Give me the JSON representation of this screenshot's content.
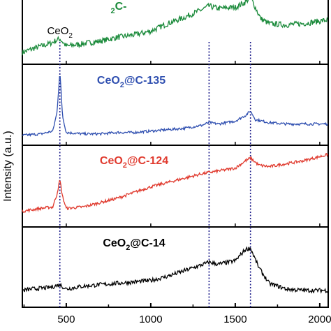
{
  "chart_data": {
    "type": "line",
    "ylabel": "Intensity (a.u.)",
    "xlim": [
      240,
      2050
    ],
    "x_ticks": [
      500,
      1000,
      1500,
      2000
    ],
    "x_tick_labels": [
      "500",
      "1000",
      "1500",
      "2000"
    ],
    "grid": false,
    "panels_stacked": true,
    "reference_lines_x": [
      462,
      1345,
      1590
    ],
    "peak_annotation": {
      "label": "CeO",
      "subscript": "2",
      "x": 462
    },
    "series": [
      {
        "name_parts": [
          "",
          "2",
          "C-"
        ],
        "color": "#1a8a3a",
        "points": [
          [
            240,
            0.12
          ],
          [
            300,
            0.18
          ],
          [
            400,
            0.26
          ],
          [
            462,
            0.34
          ],
          [
            500,
            0.22
          ],
          [
            600,
            0.26
          ],
          [
            700,
            0.3
          ],
          [
            800,
            0.36
          ],
          [
            900,
            0.4
          ],
          [
            1000,
            0.46
          ],
          [
            1100,
            0.58
          ],
          [
            1200,
            0.68
          ],
          [
            1300,
            0.8
          ],
          [
            1345,
            0.86
          ],
          [
            1400,
            0.82
          ],
          [
            1500,
            0.84
          ],
          [
            1560,
            0.92
          ],
          [
            1590,
            1.0
          ],
          [
            1650,
            0.66
          ],
          [
            1700,
            0.58
          ],
          [
            1800,
            0.56
          ],
          [
            1900,
            0.58
          ],
          [
            2000,
            0.62
          ],
          [
            2050,
            0.64
          ]
        ]
      },
      {
        "name_parts": [
          "CeO",
          "2",
          "@C-135"
        ],
        "color": "#2f4fb0",
        "points": [
          [
            240,
            0.08
          ],
          [
            350,
            0.1
          ],
          [
            420,
            0.14
          ],
          [
            445,
            0.4
          ],
          [
            462,
            0.98
          ],
          [
            478,
            0.35
          ],
          [
            500,
            0.12
          ],
          [
            600,
            0.1
          ],
          [
            700,
            0.1
          ],
          [
            800,
            0.12
          ],
          [
            900,
            0.12
          ],
          [
            1000,
            0.14
          ],
          [
            1100,
            0.16
          ],
          [
            1200,
            0.18
          ],
          [
            1300,
            0.22
          ],
          [
            1345,
            0.26
          ],
          [
            1400,
            0.24
          ],
          [
            1500,
            0.28
          ],
          [
            1560,
            0.36
          ],
          [
            1590,
            0.42
          ],
          [
            1620,
            0.3
          ],
          [
            1700,
            0.26
          ],
          [
            1800,
            0.24
          ],
          [
            1900,
            0.24
          ],
          [
            2000,
            0.24
          ],
          [
            2050,
            0.24
          ]
        ]
      },
      {
        "name_parts": [
          "CeO",
          "2",
          "@C-124"
        ],
        "color": "#e03a2e",
        "points": [
          [
            240,
            0.16
          ],
          [
            350,
            0.2
          ],
          [
            420,
            0.22
          ],
          [
            445,
            0.4
          ],
          [
            462,
            0.6
          ],
          [
            478,
            0.36
          ],
          [
            500,
            0.2
          ],
          [
            600,
            0.22
          ],
          [
            700,
            0.28
          ],
          [
            800,
            0.34
          ],
          [
            900,
            0.42
          ],
          [
            1000,
            0.5
          ],
          [
            1100,
            0.56
          ],
          [
            1200,
            0.62
          ],
          [
            1300,
            0.68
          ],
          [
            1345,
            0.7
          ],
          [
            1400,
            0.72
          ],
          [
            1500,
            0.76
          ],
          [
            1560,
            0.86
          ],
          [
            1590,
            0.9
          ],
          [
            1640,
            0.8
          ],
          [
            1700,
            0.78
          ],
          [
            1800,
            0.82
          ],
          [
            1900,
            0.86
          ],
          [
            2000,
            0.92
          ],
          [
            2050,
            0.95
          ]
        ]
      },
      {
        "name_parts": [
          "CeO",
          "2",
          "@C-14"
        ],
        "color": "#000000",
        "points": [
          [
            240,
            0.18
          ],
          [
            300,
            0.2
          ],
          [
            400,
            0.22
          ],
          [
            462,
            0.26
          ],
          [
            500,
            0.2
          ],
          [
            600,
            0.24
          ],
          [
            700,
            0.26
          ],
          [
            800,
            0.28
          ],
          [
            900,
            0.3
          ],
          [
            1000,
            0.32
          ],
          [
            1100,
            0.38
          ],
          [
            1200,
            0.46
          ],
          [
            1300,
            0.54
          ],
          [
            1345,
            0.58
          ],
          [
            1400,
            0.55
          ],
          [
            1500,
            0.6
          ],
          [
            1560,
            0.76
          ],
          [
            1590,
            0.78
          ],
          [
            1640,
            0.5
          ],
          [
            1700,
            0.28
          ],
          [
            1800,
            0.2
          ],
          [
            1900,
            0.18
          ],
          [
            2000,
            0.18
          ],
          [
            2050,
            0.18
          ]
        ]
      }
    ]
  }
}
